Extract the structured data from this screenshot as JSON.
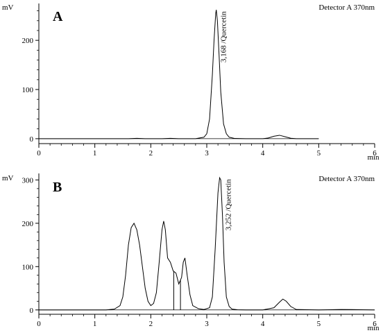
{
  "chart_data": [
    {
      "type": "line",
      "panel_label": "A",
      "detector": "Detector A 370nm",
      "ylabel": "mV",
      "xlabel": "min",
      "xlim": [
        0,
        6
      ],
      "ylim": [
        -10,
        275
      ],
      "x_ticks": [
        "0",
        "1",
        "2",
        "3",
        "4",
        "5",
        "6"
      ],
      "y_ticks": [
        0,
        100,
        200
      ],
      "y_tick_labels": [
        "0",
        "100",
        "200"
      ],
      "series": [
        {
          "x": [
            0.0,
            1.6,
            1.75,
            1.9,
            2.2,
            2.35,
            2.5,
            2.8,
            2.95,
            3.0,
            3.05,
            3.1,
            3.13,
            3.16,
            3.17,
            3.19,
            3.22,
            3.25,
            3.3,
            3.35,
            3.4,
            3.5,
            3.7,
            4.0,
            4.1,
            4.2,
            4.3,
            4.4,
            4.5,
            4.6,
            5.0
          ],
          "y": [
            0,
            0,
            0.8,
            0,
            0,
            0.8,
            0,
            0,
            3,
            10,
            40,
            130,
            200,
            255,
            262,
            240,
            170,
            95,
            30,
            10,
            3,
            0.5,
            0,
            0,
            1.5,
            5,
            7,
            4,
            1,
            0,
            0
          ]
        }
      ],
      "annotations": [
        {
          "text": "3,168 /Quercetin",
          "x": 3.168,
          "y": 262
        }
      ]
    },
    {
      "type": "line",
      "panel_label": "B",
      "detector": "Detector A 370nm",
      "ylabel": "mV",
      "xlabel": "min",
      "xlim": [
        0,
        6
      ],
      "ylim": [
        -10,
        315
      ],
      "x_ticks": [
        "0",
        "1",
        "2",
        "3",
        "4",
        "5",
        "6"
      ],
      "y_ticks": [
        0,
        100,
        200,
        300
      ],
      "y_tick_labels": [
        "0",
        "100",
        "200",
        "300"
      ],
      "series": [
        {
          "x": [
            0.0,
            1.2,
            1.35,
            1.45,
            1.5,
            1.55,
            1.6,
            1.65,
            1.7,
            1.75,
            1.8,
            1.85,
            1.9,
            1.95,
            2.0,
            2.05,
            2.1,
            2.15,
            2.2,
            2.23,
            2.26,
            2.3,
            2.35,
            2.4,
            2.45,
            2.5,
            2.55,
            2.58,
            2.61,
            2.65,
            2.7,
            2.75,
            2.85,
            2.95,
            3.05,
            3.1,
            3.15,
            3.2,
            3.23,
            3.25,
            3.28,
            3.31,
            3.35,
            3.4,
            3.45,
            3.55,
            3.7,
            4.0,
            4.2,
            4.3,
            4.36,
            4.42,
            4.5,
            4.6,
            5.0,
            5.4,
            5.8,
            6.0
          ],
          "y": [
            0,
            0,
            2,
            10,
            30,
            80,
            150,
            190,
            200,
            185,
            150,
            100,
            50,
            20,
            10,
            15,
            40,
            110,
            185,
            205,
            185,
            120,
            110,
            90,
            85,
            60,
            75,
            110,
            120,
            80,
            35,
            10,
            3,
            1,
            5,
            30,
            140,
            270,
            305,
            300,
            220,
            110,
            30,
            8,
            2,
            0.5,
            0,
            0,
            5,
            18,
            25,
            20,
            8,
            1,
            0,
            1,
            0.5,
            0
          ]
        }
      ],
      "drop_lines_x": [
        2.41,
        2.53
      ],
      "annotations": [
        {
          "text": "3,252 /Quercetin",
          "x": 3.252,
          "y": 305
        }
      ]
    }
  ]
}
